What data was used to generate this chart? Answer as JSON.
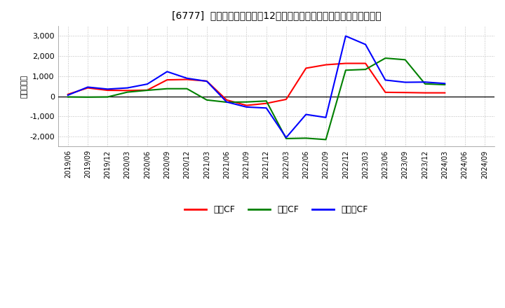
{
  "title": "[6777]  キャッシュフローの12か月移動合計の対前年同期増減額の推移",
  "ylabel": "（百万円）",
  "background_color": "#ffffff",
  "plot_bg_color": "#ffffff",
  "grid_color": "#bbbbbb",
  "ylim": [
    -2500,
    3500
  ],
  "yticks": [
    -2000,
    -1000,
    0,
    1000,
    2000,
    3000
  ],
  "x_labels": [
    "2019/06",
    "2019/09",
    "2019/12",
    "2020/03",
    "2020/06",
    "2020/09",
    "2020/12",
    "2021/03",
    "2021/06",
    "2021/09",
    "2021/12",
    "2022/03",
    "2022/06",
    "2022/09",
    "2022/12",
    "2023/03",
    "2023/06",
    "2023/09",
    "2023/12",
    "2024/03",
    "2024/06",
    "2024/09"
  ],
  "series": {
    "営業CF": {
      "color": "#ff0000",
      "values": [
        100,
        420,
        300,
        290,
        310,
        820,
        840,
        760,
        -180,
        -450,
        -350,
        -150,
        1400,
        1570,
        1640,
        1640,
        200,
        190,
        175,
        175,
        null,
        null
      ]
    },
    "投賀CF": {
      "color": "#008000",
      "values": [
        -30,
        -40,
        -30,
        210,
        300,
        380,
        380,
        -180,
        -290,
        -280,
        -230,
        -2100,
        -2080,
        -2150,
        1300,
        1340,
        1900,
        1820,
        620,
        580,
        null,
        null
      ]
    },
    "フリCF": {
      "color": "#0000ff",
      "values": [
        60,
        460,
        360,
        420,
        610,
        1230,
        900,
        750,
        -280,
        -530,
        -580,
        -2050,
        -900,
        -1050,
        3000,
        2580,
        810,
        700,
        710,
        640,
        null,
        null
      ]
    }
  },
  "legend": {
    "labels": [
      "営業CF",
      "投賀CF",
      "フリーCF"
    ],
    "colors": [
      "#ff0000",
      "#008000",
      "#0000ff"
    ]
  }
}
